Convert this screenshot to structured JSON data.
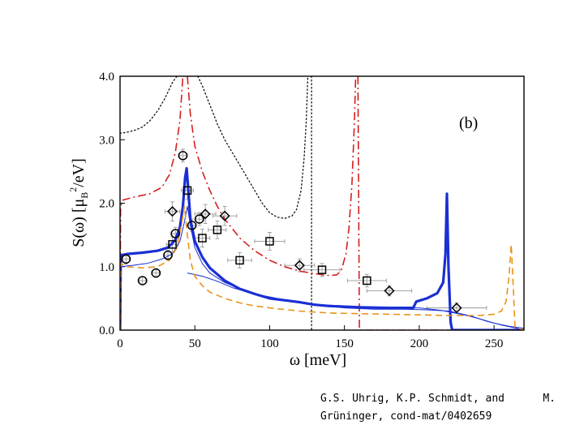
{
  "chart_data": {
    "type": "line",
    "panel_label": "(b)",
    "xlabel": "ω [meV]",
    "ylabel": {
      "main": "S(ω) [μ",
      "sub": "B",
      "sup": "2",
      "tail": "/eV]"
    },
    "xlim": [
      0,
      270
    ],
    "ylim": [
      0,
      4
    ],
    "x_ticks": [
      0,
      50,
      100,
      150,
      200,
      250
    ],
    "y_ticks": [
      0,
      1,
      2,
      3,
      4
    ],
    "y_tick_labels": [
      "0.0",
      "1.0",
      "2.0",
      "3.0",
      "4.0"
    ],
    "series": [
      {
        "name": "dotted black",
        "color": "#111111",
        "style": "dotted",
        "width": 1.3,
        "points": [
          [
            0,
            3.1
          ],
          [
            5,
            3.12
          ],
          [
            10,
            3.15
          ],
          [
            15,
            3.2
          ],
          [
            20,
            3.3
          ],
          [
            25,
            3.45
          ],
          [
            30,
            3.65
          ],
          [
            35,
            3.9
          ],
          [
            38,
            4.0
          ],
          [
            null,
            null
          ],
          [
            52,
            4.0
          ],
          [
            55,
            3.85
          ],
          [
            60,
            3.55
          ],
          [
            65,
            3.25
          ],
          [
            70,
            3.0
          ],
          [
            75,
            2.8
          ],
          [
            80,
            2.6
          ],
          [
            85,
            2.4
          ],
          [
            90,
            2.2
          ],
          [
            95,
            2.0
          ],
          [
            100,
            1.85
          ],
          [
            105,
            1.78
          ],
          [
            110,
            1.76
          ],
          [
            115,
            1.8
          ],
          [
            118,
            1.9
          ],
          [
            121,
            2.2
          ],
          [
            123,
            2.7
          ],
          [
            124.5,
            3.3
          ],
          [
            125.5,
            4.0
          ],
          [
            null,
            null
          ],
          [
            128,
            4.0
          ],
          [
            128,
            0
          ]
        ]
      },
      {
        "name": "dash-dot red",
        "color": "#d42020",
        "style": "dashdot",
        "width": 1.6,
        "points": [
          [
            0,
            0
          ],
          [
            0.4,
            1.95
          ],
          [
            2,
            2.05
          ],
          [
            10,
            2.1
          ],
          [
            20,
            2.15
          ],
          [
            28,
            2.25
          ],
          [
            33,
            2.45
          ],
          [
            37,
            2.8
          ],
          [
            40,
            3.3
          ],
          [
            42,
            4.0
          ],
          [
            null,
            null
          ],
          [
            45,
            4.0
          ],
          [
            47,
            3.4
          ],
          [
            50,
            2.9
          ],
          [
            55,
            2.5
          ],
          [
            60,
            2.2
          ],
          [
            65,
            1.95
          ],
          [
            70,
            1.75
          ],
          [
            80,
            1.45
          ],
          [
            90,
            1.25
          ],
          [
            100,
            1.1
          ],
          [
            110,
            1.0
          ],
          [
            120,
            0.93
          ],
          [
            130,
            0.89
          ],
          [
            140,
            0.86
          ],
          [
            145,
            0.87
          ],
          [
            148,
            0.95
          ],
          [
            151,
            1.2
          ],
          [
            153,
            1.6
          ],
          [
            155,
            2.3
          ],
          [
            156.5,
            3.2
          ],
          [
            157.5,
            4.0
          ],
          [
            null,
            null
          ],
          [
            159,
            4.0
          ],
          [
            160,
            0.0
          ],
          [
            270,
            0.0
          ]
        ]
      },
      {
        "name": "thick blue",
        "color": "#1a2fd4",
        "style": "solid",
        "width": 3.2,
        "points": [
          [
            0,
            0
          ],
          [
            0.5,
            1.18
          ],
          [
            5,
            1.2
          ],
          [
            15,
            1.22
          ],
          [
            25,
            1.25
          ],
          [
            32,
            1.3
          ],
          [
            37,
            1.42
          ],
          [
            40,
            1.62
          ],
          [
            42,
            1.95
          ],
          [
            43.5,
            2.4
          ],
          [
            44.5,
            2.55
          ],
          [
            45.5,
            2.25
          ],
          [
            47,
            1.75
          ],
          [
            50,
            1.4
          ],
          [
            55,
            1.15
          ],
          [
            60,
            0.98
          ],
          [
            70,
            0.78
          ],
          [
            80,
            0.65
          ],
          [
            90,
            0.57
          ],
          [
            100,
            0.5
          ],
          [
            110,
            0.47
          ],
          [
            120,
            0.44
          ],
          [
            130,
            0.4
          ],
          [
            140,
            0.38
          ],
          [
            160,
            0.36
          ],
          [
            180,
            0.35
          ],
          [
            196,
            0.35
          ],
          [
            198,
            0.45
          ],
          [
            205,
            0.5
          ],
          [
            212,
            0.58
          ],
          [
            216,
            0.75
          ],
          [
            217.5,
            1.2
          ],
          [
            218.5,
            2.15
          ],
          [
            219.5,
            1.0
          ],
          [
            221,
            0.12
          ],
          [
            222,
            0.0
          ],
          [
            270,
            0.0
          ]
        ]
      },
      {
        "name": "thin blue",
        "color": "#1a2fd4",
        "style": "solid",
        "width": 1.0,
        "points": [
          [
            0,
            0
          ],
          [
            0.5,
            1.0
          ],
          [
            8,
            1.02
          ],
          [
            18,
            1.05
          ],
          [
            28,
            1.12
          ],
          [
            35,
            1.2
          ],
          [
            40,
            1.4
          ],
          [
            43,
            1.7
          ],
          [
            45,
            1.95
          ],
          [
            47,
            1.65
          ],
          [
            50,
            1.3
          ],
          [
            55,
            1.05
          ],
          [
            60,
            0.9
          ],
          [
            70,
            0.75
          ],
          [
            80,
            0.65
          ],
          [
            90,
            0.57
          ],
          [
            100,
            0.5
          ],
          [
            115,
            0.45
          ],
          [
            130,
            0.4
          ],
          [
            150,
            0.35
          ],
          [
            170,
            0.33
          ],
          [
            190,
            0.33
          ],
          [
            205,
            0.32
          ],
          [
            220,
            0.3
          ],
          [
            235,
            0.22
          ],
          [
            245,
            0.14
          ],
          [
            255,
            0.08
          ],
          [
            265,
            0.03
          ],
          [
            270,
            0.0
          ]
        ]
      },
      {
        "name": "thin blue (lower)",
        "color": "#1a2fd4",
        "style": "solid",
        "width": 1.0,
        "points": [
          [
            45,
            0.9
          ],
          [
            55,
            0.85
          ],
          [
            65,
            0.77
          ],
          [
            75,
            0.67
          ],
          [
            90,
            0.57
          ],
          [
            105,
            0.5
          ],
          [
            120,
            0.44
          ],
          [
            135,
            0.4
          ],
          [
            160,
            0.37
          ],
          [
            185,
            0.35
          ],
          [
            200,
            0.35
          ],
          [
            215,
            0.31
          ],
          [
            230,
            0.24
          ],
          [
            240,
            0.18
          ],
          [
            250,
            0.11
          ],
          [
            260,
            0.06
          ],
          [
            270,
            0.03
          ]
        ]
      },
      {
        "name": "dashed orange",
        "color": "#e89418",
        "style": "dashed",
        "width": 1.6,
        "points": [
          [
            0,
            0
          ],
          [
            0.5,
            1.05
          ],
          [
            5,
            1.0
          ],
          [
            15,
            0.98
          ],
          [
            25,
            1.0
          ],
          [
            33,
            1.1
          ],
          [
            38,
            1.3
          ],
          [
            41,
            1.65
          ],
          [
            43,
            1.95
          ],
          [
            45,
            1.5
          ],
          [
            47,
            1.1
          ],
          [
            50,
            0.85
          ],
          [
            55,
            0.7
          ],
          [
            60,
            0.6
          ],
          [
            70,
            0.5
          ],
          [
            80,
            0.43
          ],
          [
            90,
            0.38
          ],
          [
            100,
            0.35
          ],
          [
            120,
            0.3
          ],
          [
            140,
            0.27
          ],
          [
            160,
            0.26
          ],
          [
            180,
            0.25
          ],
          [
            200,
            0.24
          ],
          [
            220,
            0.23
          ],
          [
            240,
            0.23
          ],
          [
            250,
            0.25
          ],
          [
            255,
            0.3
          ],
          [
            258,
            0.45
          ],
          [
            260,
            0.85
          ],
          [
            261.5,
            1.35
          ],
          [
            263,
            0.6
          ],
          [
            264,
            0.05
          ],
          [
            270,
            0.0
          ]
        ]
      }
    ],
    "markers": [
      {
        "shape": "circle",
        "x": 4,
        "y": 1.12,
        "xerr": 3,
        "yerr": 0.08
      },
      {
        "shape": "circle",
        "x": 15,
        "y": 0.78,
        "xerr": 3,
        "yerr": 0.06
      },
      {
        "shape": "circle",
        "x": 24,
        "y": 0.9,
        "xerr": 3,
        "yerr": 0.07
      },
      {
        "shape": "circle",
        "x": 32,
        "y": 1.18,
        "xerr": 3,
        "yerr": 0.08
      },
      {
        "shape": "circle",
        "x": 37,
        "y": 1.52,
        "xerr": 3,
        "yerr": 0.1
      },
      {
        "shape": "circle",
        "x": 42,
        "y": 2.75,
        "xerr": 3,
        "yerr": 0.1
      },
      {
        "shape": "circle",
        "x": 48,
        "y": 1.65,
        "xerr": 3,
        "yerr": 0.1
      },
      {
        "shape": "circle",
        "x": 53,
        "y": 1.75,
        "xerr": 3,
        "yerr": 0.1
      },
      {
        "shape": "square",
        "x": 35,
        "y": 1.35,
        "xerr": 4,
        "yerr": 0.12
      },
      {
        "shape": "square",
        "x": 45,
        "y": 2.2,
        "xerr": 4,
        "yerr": 0.14
      },
      {
        "shape": "square",
        "x": 55,
        "y": 1.45,
        "xerr": 5,
        "yerr": 0.14
      },
      {
        "shape": "square",
        "x": 65,
        "y": 1.58,
        "xerr": 6,
        "yerr": 0.14
      },
      {
        "shape": "square",
        "x": 80,
        "y": 1.1,
        "xerr": 8,
        "yerr": 0.12
      },
      {
        "shape": "square",
        "x": 100,
        "y": 1.4,
        "xerr": 10,
        "yerr": 0.14
      },
      {
        "shape": "square",
        "x": 135,
        "y": 0.95,
        "xerr": 12,
        "yerr": 0.1
      },
      {
        "shape": "square",
        "x": 165,
        "y": 0.78,
        "xerr": 13,
        "yerr": 0.1
      },
      {
        "shape": "diamond",
        "x": 35,
        "y": 1.87,
        "xerr": 5,
        "yerr": 0.15
      },
      {
        "shape": "diamond",
        "x": 57,
        "y": 1.83,
        "xerr": 7,
        "yerr": 0.15
      },
      {
        "shape": "diamond",
        "x": 70,
        "y": 1.8,
        "xerr": 8,
        "yerr": 0.15
      },
      {
        "shape": "diamond",
        "x": 120,
        "y": 1.02,
        "xerr": 10,
        "yerr": 0.1
      },
      {
        "shape": "diamond",
        "x": 180,
        "y": 0.62,
        "xerr": 15,
        "yerr": 0.08
      },
      {
        "shape": "diamond",
        "x": 225,
        "y": 0.35,
        "xerr": 20,
        "yerr": 0.08
      }
    ]
  },
  "caption": {
    "line1_left": "G.S. Uhrig, K.P. Schmidt, and",
    "line1_right": "M.",
    "line2": "Grüninger, cond-mat/0402659"
  }
}
